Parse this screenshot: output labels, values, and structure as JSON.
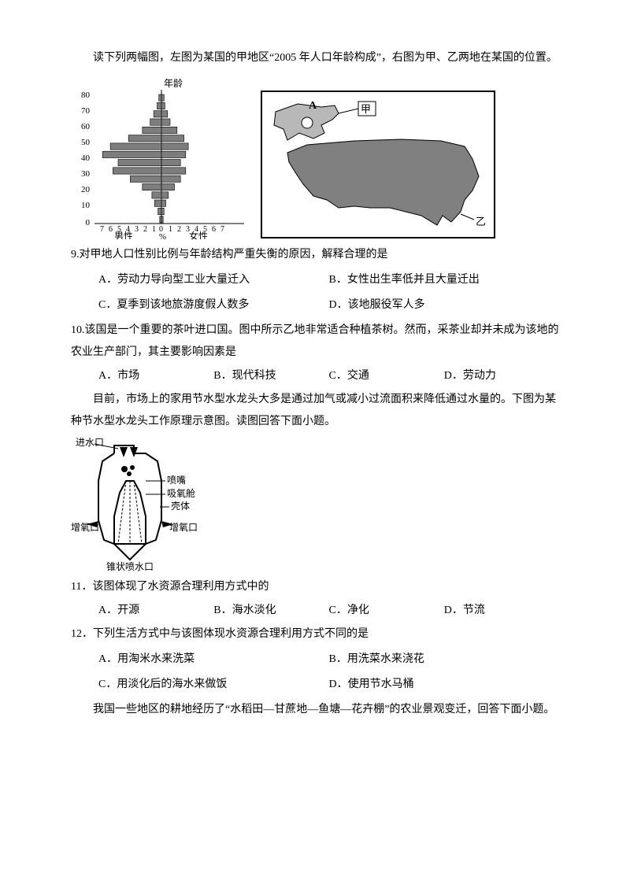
{
  "intro1": "读下列两幅图，左图为某国的甲地区“2005 年人口年龄构成”，右图为甲、乙两地在某国的位置。",
  "pyramid": {
    "title": "年龄",
    "y_ticks": [
      "80",
      "70",
      "60",
      "50",
      "40",
      "30",
      "20",
      "10",
      "0"
    ],
    "x_ticks_male": [
      "7",
      "6",
      "5",
      "4",
      "3",
      "2",
      "1",
      "0"
    ],
    "x_ticks_female": [
      "1",
      "2",
      "3",
      "4",
      "5",
      "6",
      "7"
    ],
    "x_label_male": "男性",
    "x_label_female": "女性",
    "x_middle": "%",
    "male_values": [
      0.3,
      0.5,
      0.9,
      1.3,
      2.2,
      3.8,
      5.9,
      6.8,
      5.0,
      5.6,
      3.6,
      2.2,
      1.1,
      0.8,
      0.4,
      0.2
    ],
    "female_values": [
      0.3,
      0.4,
      0.7,
      1.0,
      1.8,
      2.6,
      3.1,
      2.8,
      2.2,
      2.8,
      2.2,
      1.5,
      0.8,
      0.5,
      0.3,
      0.2
    ],
    "bar_color": "#7d7d7d",
    "axis_color": "#000000"
  },
  "map": {
    "label_A": "A",
    "label_jia": "甲",
    "label_yi": "乙",
    "fill_color": "#808080",
    "outline_color": "#000000"
  },
  "q9": {
    "stem": "9.对甲地人口性别比例与年龄结构严重失衡的原因，解释合理的是",
    "a": "A．劳动力导向型工业大量迁入",
    "b": "B．女性出生率低并且大量迁出",
    "c": "C．夏季到该地旅游度假人数多",
    "d": "D．该地服役军人多"
  },
  "q10": {
    "stem": "10.该国是一个重要的茶叶进口国。图中所示乙地非常适合种植茶树。然而，采茶业却并未成为该地的农业生产部门，其主要影响因素是",
    "a": "A．市场",
    "b": "B．现代科技",
    "c": "C．交通",
    "d": "D．劳动力"
  },
  "intro2": "目前，市场上的家用节水型水龙头大多是通过加气或减小过流面积来降低通过水量的。下图为某种节水型水龙头工作原理示意图。读图回答下面小题。",
  "faucet": {
    "labels": {
      "inlet": "进水口",
      "nozzle": "喷嘴",
      "oxygen_chamber": "吸氧舱",
      "shell": "壳体",
      "aerator_left": "增氧口",
      "aerator_right": "增氧口",
      "cone": "锥状喷水口"
    },
    "outline_color": "#000000",
    "fill_color": "#ffffff"
  },
  "q11": {
    "stem": "11．该图体现了水资源合理利用方式中的",
    "a": "A．开源",
    "b": "B．海水淡化",
    "c": "C．净化",
    "d": "D．节流"
  },
  "q12": {
    "stem": "12．下列生活方式中与该图体现水资源合理利用方式不同的是",
    "a": "A．用淘米水来洗菜",
    "b": "B．用洗菜水来浇花",
    "c": "C．用淡化后的海水来做饭",
    "d": "D．使用节水马桶"
  },
  "intro3": "我国一些地区的耕地经历了“水稻田—甘蔗地—鱼塘—花卉棚”的农业景观变迁，回答下面小题。"
}
